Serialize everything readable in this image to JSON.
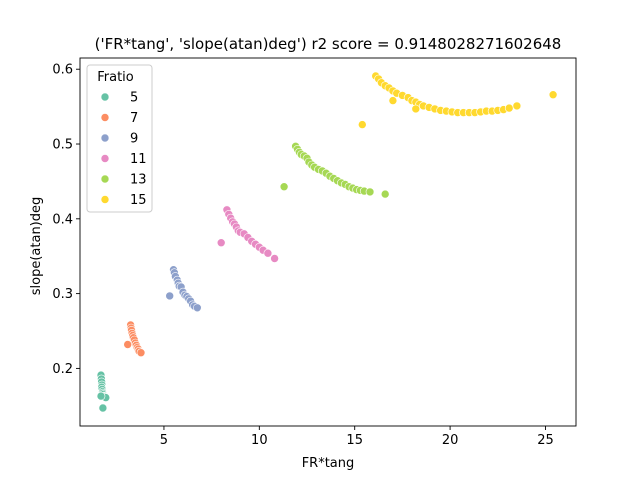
{
  "chart_data": {
    "type": "scatter",
    "title": "('FR*tang', 'slope(atan)deg') r2 score = 0.9148028271602648",
    "xlabel": "FR*tang",
    "ylabel": "slope(atan)deg",
    "xlim": [
      0.6,
      26.6
    ],
    "ylim": [
      0.123,
      0.615
    ],
    "xticks": [
      5,
      10,
      15,
      20,
      25
    ],
    "yticks": [
      0.2,
      0.3,
      0.4,
      0.5,
      0.6
    ],
    "xtick_labels": [
      "5",
      "10",
      "15",
      "20",
      "25"
    ],
    "ytick_labels": [
      "0.2",
      "0.3",
      "0.4",
      "0.5",
      "0.6"
    ],
    "grid": false,
    "legend": {
      "title": "Fratio",
      "placement": "top-left"
    },
    "series": [
      {
        "name": "5",
        "color": "#66c2a5",
        "points": [
          [
            1.7,
            0.191
          ],
          [
            1.72,
            0.186
          ],
          [
            1.73,
            0.182
          ],
          [
            1.75,
            0.178
          ],
          [
            1.74,
            0.175
          ],
          [
            1.76,
            0.172
          ],
          [
            1.78,
            0.169
          ],
          [
            1.8,
            0.167
          ],
          [
            1.82,
            0.165
          ],
          [
            1.85,
            0.163
          ],
          [
            1.9,
            0.162
          ],
          [
            1.95,
            0.161
          ],
          [
            1.7,
            0.163
          ],
          [
            1.8,
            0.147
          ]
        ]
      },
      {
        "name": "7",
        "color": "#fc8d62",
        "points": [
          [
            3.25,
            0.258
          ],
          [
            3.28,
            0.254
          ],
          [
            3.3,
            0.251
          ],
          [
            3.33,
            0.247
          ],
          [
            3.36,
            0.244
          ],
          [
            3.4,
            0.241
          ],
          [
            3.45,
            0.238
          ],
          [
            3.5,
            0.234
          ],
          [
            3.55,
            0.231
          ],
          [
            3.6,
            0.228
          ],
          [
            3.65,
            0.226
          ],
          [
            3.7,
            0.223
          ],
          [
            3.8,
            0.221
          ],
          [
            3.1,
            0.232
          ]
        ]
      },
      {
        "name": "9",
        "color": "#8da0cb",
        "points": [
          [
            5.5,
            0.332
          ],
          [
            5.55,
            0.328
          ],
          [
            5.6,
            0.323
          ],
          [
            5.7,
            0.318
          ],
          [
            5.75,
            0.314
          ],
          [
            5.8,
            0.31
          ],
          [
            5.9,
            0.309
          ],
          [
            6.0,
            0.302
          ],
          [
            6.1,
            0.298
          ],
          [
            6.2,
            0.296
          ],
          [
            6.3,
            0.293
          ],
          [
            6.4,
            0.29
          ],
          [
            6.5,
            0.285
          ],
          [
            6.6,
            0.283
          ],
          [
            6.75,
            0.281
          ],
          [
            5.3,
            0.297
          ]
        ]
      },
      {
        "name": "11",
        "color": "#e78ac3",
        "points": [
          [
            8.3,
            0.412
          ],
          [
            8.4,
            0.406
          ],
          [
            8.5,
            0.401
          ],
          [
            8.6,
            0.396
          ],
          [
            8.7,
            0.393
          ],
          [
            8.8,
            0.389
          ],
          [
            8.9,
            0.384
          ],
          [
            9.0,
            0.382
          ],
          [
            9.2,
            0.38
          ],
          [
            9.4,
            0.375
          ],
          [
            9.6,
            0.37
          ],
          [
            9.8,
            0.366
          ],
          [
            10.0,
            0.362
          ],
          [
            10.2,
            0.358
          ],
          [
            10.45,
            0.354
          ],
          [
            10.8,
            0.347
          ],
          [
            8.0,
            0.368
          ]
        ]
      },
      {
        "name": "13",
        "color": "#a6d854",
        "points": [
          [
            11.9,
            0.497
          ],
          [
            12.0,
            0.493
          ],
          [
            12.1,
            0.489
          ],
          [
            12.2,
            0.486
          ],
          [
            12.35,
            0.484
          ],
          [
            12.5,
            0.481
          ],
          [
            12.6,
            0.476
          ],
          [
            12.75,
            0.472
          ],
          [
            12.9,
            0.469
          ],
          [
            13.1,
            0.466
          ],
          [
            13.3,
            0.464
          ],
          [
            13.5,
            0.461
          ],
          [
            13.7,
            0.457
          ],
          [
            13.9,
            0.454
          ],
          [
            14.1,
            0.451
          ],
          [
            14.3,
            0.448
          ],
          [
            14.5,
            0.446
          ],
          [
            14.7,
            0.443
          ],
          [
            14.9,
            0.441
          ],
          [
            15.1,
            0.439
          ],
          [
            15.3,
            0.438
          ],
          [
            15.5,
            0.437
          ],
          [
            15.8,
            0.436
          ],
          [
            16.6,
            0.433
          ],
          [
            11.3,
            0.443
          ]
        ]
      },
      {
        "name": "15",
        "color": "#ffd92f",
        "points": [
          [
            16.1,
            0.591
          ],
          [
            16.25,
            0.587
          ],
          [
            16.4,
            0.582
          ],
          [
            16.6,
            0.578
          ],
          [
            16.8,
            0.575
          ],
          [
            17.0,
            0.571
          ],
          [
            17.2,
            0.568
          ],
          [
            17.5,
            0.565
          ],
          [
            17.8,
            0.562
          ],
          [
            18.0,
            0.558
          ],
          [
            18.2,
            0.556
          ],
          [
            18.4,
            0.553
          ],
          [
            18.6,
            0.551
          ],
          [
            18.9,
            0.549
          ],
          [
            19.2,
            0.547
          ],
          [
            19.5,
            0.545
          ],
          [
            19.8,
            0.544
          ],
          [
            20.1,
            0.543
          ],
          [
            20.4,
            0.542
          ],
          [
            20.7,
            0.542
          ],
          [
            21.0,
            0.542
          ],
          [
            21.3,
            0.542
          ],
          [
            21.6,
            0.543
          ],
          [
            21.9,
            0.544
          ],
          [
            22.2,
            0.544
          ],
          [
            22.5,
            0.545
          ],
          [
            22.8,
            0.546
          ],
          [
            23.1,
            0.548
          ],
          [
            23.5,
            0.551
          ],
          [
            25.4,
            0.566
          ],
          [
            15.4,
            0.526
          ],
          [
            17.0,
            0.558
          ],
          [
            18.2,
            0.547
          ]
        ]
      }
    ]
  }
}
